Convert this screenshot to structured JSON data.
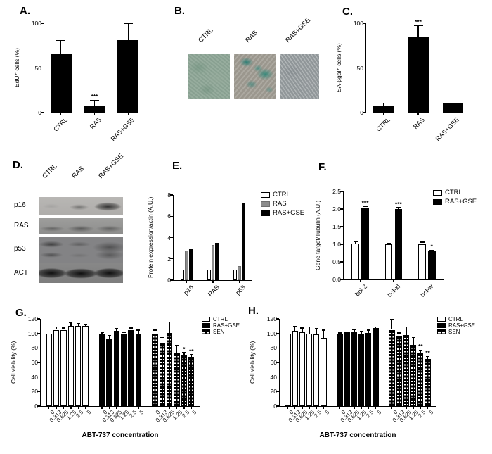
{
  "figure": {
    "background": "#ffffff",
    "stain_color": "#3f8e84"
  },
  "panels": {
    "A": {
      "label": "A."
    },
    "B": {
      "label": "B.",
      "images": [
        {
          "label": "CTRL"
        },
        {
          "label": "RAS"
        },
        {
          "label": "RAS+GSE"
        }
      ]
    },
    "C": {
      "label": "C."
    },
    "D": {
      "label": "D.",
      "lanes": [
        "CTRL",
        "RAS",
        "RAS+GSE"
      ],
      "rows": [
        "p16",
        "RAS",
        "p53",
        "ACT"
      ]
    },
    "E": {
      "label": "E."
    },
    "F": {
      "label": "F."
    },
    "G": {
      "label": "G."
    },
    "H": {
      "label": "H."
    }
  },
  "chart_data": [
    {
      "panel": "A",
      "type": "bar",
      "grouping": "by-category",
      "ylabel": "EdU⁺ cells (%)",
      "xlabel": "",
      "categories": [
        "CTRL",
        "RAS",
        "RAS+GSE"
      ],
      "series": [
        {
          "name": "",
          "style": "solid",
          "values": [
            65,
            8,
            81
          ],
          "errors": [
            15,
            5,
            18
          ],
          "sig": [
            "",
            "***",
            ""
          ]
        }
      ],
      "ylim": [
        0,
        100
      ],
      "yticks": [
        "0",
        "50",
        "100"
      ],
      "grid": false,
      "cluster_fill": 0.62,
      "bar_gap": 2,
      "legend": null
    },
    {
      "panel": "C",
      "type": "bar",
      "grouping": "by-category",
      "ylabel": "SA-βgal⁺ cells (%)",
      "xlabel": "",
      "categories": [
        "CTRL",
        "RAS",
        "RAS+GSE"
      ],
      "series": [
        {
          "name": "",
          "style": "solid",
          "values": [
            7,
            85,
            11
          ],
          "errors": [
            3,
            12,
            7
          ],
          "sig": [
            "",
            "***",
            ""
          ]
        }
      ],
      "ylim": [
        0,
        100
      ],
      "yticks": [
        "0",
        "50",
        "100"
      ],
      "grid": false,
      "cluster_fill": 0.6,
      "bar_gap": 2,
      "legend": null
    },
    {
      "panel": "E",
      "type": "bar",
      "grouping": "by-category",
      "ylabel": "Protein expression/actin (A.U.)",
      "xlabel": "",
      "categories": [
        "p16",
        "RAS",
        "p53"
      ],
      "series": [
        {
          "name": "CTRL",
          "style": "open",
          "values": [
            1.0,
            1.0,
            1.0
          ]
        },
        {
          "name": "RAS",
          "style": "gray",
          "values": [
            2.8,
            3.3,
            1.3
          ]
        },
        {
          "name": "RAS+GSE",
          "style": "solid",
          "values": [
            2.9,
            3.5,
            7.2
          ]
        }
      ],
      "ylim": [
        0,
        8
      ],
      "yticks": [
        "0",
        "2",
        "4",
        "6",
        "8"
      ],
      "grid": false,
      "cluster_fill": 0.45,
      "bar_gap": 1,
      "legend": [
        "CTRL",
        "RAS",
        "RAS+GSE"
      ],
      "legend_position": "right-top"
    },
    {
      "panel": "F",
      "type": "bar",
      "grouping": "by-category",
      "ylabel": "Gene target/Tubulin (A.U.)",
      "xlabel": "",
      "categories": [
        "bcl-2",
        "bcl-xl",
        "bcl-w"
      ],
      "series": [
        {
          "name": "CTRL",
          "style": "open",
          "values": [
            1.03,
            1.0,
            1.0
          ],
          "errors": [
            0.04,
            0.02,
            0.05
          ],
          "sig": [
            "",
            "",
            ""
          ]
        },
        {
          "name": "RAS+GSE",
          "style": "solid",
          "values": [
            2.02,
            2.0,
            0.8
          ],
          "errors": [
            0.04,
            0.03,
            0.02
          ],
          "sig": [
            "***",
            "***",
            "*"
          ]
        }
      ],
      "ylim": [
        0,
        2.5
      ],
      "yticks": [
        "0.0",
        "0.5",
        "1.0",
        "1.5",
        "2.0",
        "2.5"
      ],
      "grid": false,
      "cluster_fill": 0.52,
      "bar_gap": 3,
      "legend": [
        "CTRL",
        "RAS+GSE"
      ],
      "legend_position": "right-top"
    },
    {
      "panel": "G",
      "type": "bar",
      "grouping": "by-series",
      "ylabel": "Cell viability (%)",
      "xlabel": "ABT-737 concentration",
      "categories": [
        "0",
        "0.313",
        "0.625",
        "1.25",
        "2.5",
        "5"
      ],
      "series": [
        {
          "name": "CTRL",
          "style": "open",
          "values": [
            100,
            105,
            105,
            110,
            110,
            110
          ],
          "errors": [
            0,
            3,
            2,
            4,
            3,
            1
          ],
          "sig": [
            "",
            "",
            "",
            "",
            "",
            ""
          ]
        },
        {
          "name": "RAS+GSE",
          "style": "solid",
          "values": [
            100,
            93,
            104,
            99,
            105,
            100
          ],
          "errors": [
            1,
            4,
            2,
            2,
            2,
            4
          ],
          "sig": [
            "",
            "",
            "",
            "",
            "",
            ""
          ]
        },
        {
          "name": "SEN",
          "style": "hstripe",
          "values": [
            100,
            87,
            101,
            73,
            71,
            68
          ],
          "errors": [
            4,
            7,
            14,
            10,
            2,
            2
          ],
          "sig": [
            "",
            "",
            "",
            "",
            "*",
            "**"
          ]
        }
      ],
      "ylim": [
        0,
        120
      ],
      "yticks": [
        "0",
        "20",
        "40",
        "60",
        "80",
        "100",
        "120"
      ],
      "grid": false,
      "cluster_fill": 0.8,
      "bar_gap": 2,
      "legend": [
        "CTRL",
        "RAS+GSE",
        "SEN"
      ],
      "legend_position": "right-top"
    },
    {
      "panel": "H",
      "type": "bar",
      "grouping": "by-series",
      "ylabel": "Cell viability (%)",
      "xlabel": "ABT-737 concentration",
      "categories": [
        "0",
        "0.313",
        "0.625",
        "1.25",
        "2.5",
        "5"
      ],
      "series": [
        {
          "name": "CTRL",
          "style": "open",
          "values": [
            100,
            104,
            102,
            100,
            99,
            94
          ],
          "errors": [
            0,
            5,
            5,
            8,
            7,
            10
          ],
          "sig": [
            "",
            "",
            "",
            "",
            "",
            ""
          ]
        },
        {
          "name": "RAS+GSE",
          "style": "solid",
          "values": [
            99,
            102,
            103,
            100,
            101,
            107
          ],
          "errors": [
            1,
            6,
            2,
            2,
            3,
            1
          ],
          "sig": [
            "",
            "",
            "",
            "",
            "",
            ""
          ]
        },
        {
          "name": "SEN",
          "style": "hstripe",
          "values": [
            105,
            97,
            98,
            84,
            73,
            65
          ],
          "errors": [
            14,
            3,
            10,
            10,
            3,
            3
          ],
          "sig": [
            "",
            "",
            "",
            "",
            "**",
            "**"
          ]
        }
      ],
      "ylim": [
        0,
        120
      ],
      "yticks": [
        "0",
        "20",
        "40",
        "60",
        "80",
        "100",
        "120"
      ],
      "grid": false,
      "cluster_fill": 0.8,
      "bar_gap": 2,
      "legend": [
        "CTRL",
        "RAS+GSE",
        "SEN"
      ],
      "legend_position": "right-top"
    }
  ],
  "bar_styles": {
    "open": {
      "fill": "#ffffff",
      "border": "#000000"
    },
    "solid": {
      "fill": "#000000",
      "border": "#000000"
    },
    "gray": {
      "fill": "#8c8c8c",
      "border": "#6f6f6f"
    },
    "hstripe": {
      "fill": "#000000",
      "stripe": "#ffffff",
      "border": "#000000"
    }
  }
}
